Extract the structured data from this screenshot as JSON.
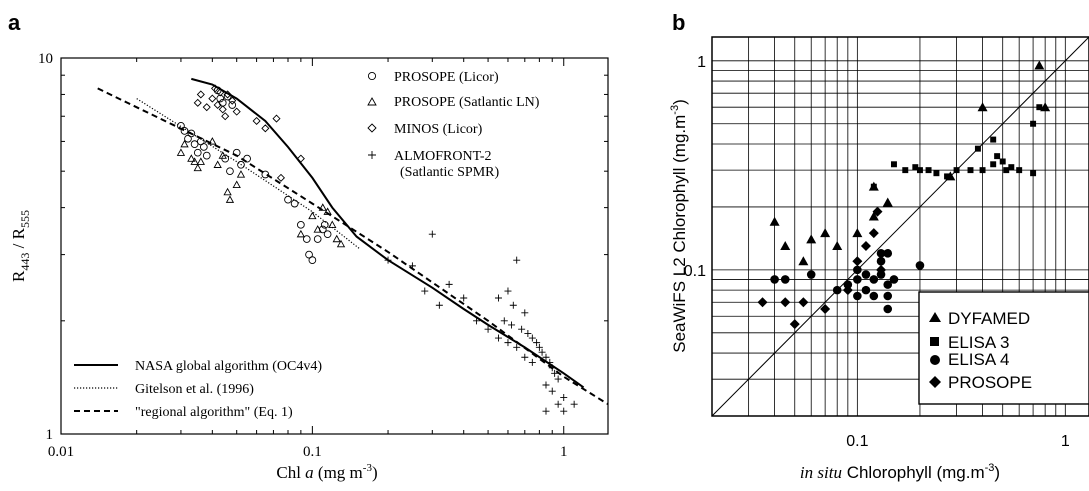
{
  "chart_data": [
    {
      "panel_label": "a",
      "type": "scatter",
      "xlabel_pre": "Chl ",
      "xlabel_italic": "a",
      "xlabel_unit": " (mg m",
      "xlabel_exp": "-3",
      "xlabel_post": ")",
      "ylabel_main_1": "R",
      "ylabel_sub_1": "443",
      "ylabel_mid": " / R",
      "ylabel_sub_2": "555",
      "x_scale": "log",
      "y_scale": "log",
      "xlim": [
        0.01,
        1.5
      ],
      "ylim": [
        1,
        10
      ],
      "x_ticks": [
        {
          "v": 0.01,
          "label": "0.01"
        },
        {
          "v": 0.1,
          "label": "0.1"
        },
        {
          "v": 1,
          "label": "1"
        }
      ],
      "y_ticks": [
        {
          "v": 1,
          "label": "1"
        },
        {
          "v": 10,
          "label": "10"
        }
      ],
      "series": [
        {
          "name": "PROSOPE (Licor)",
          "marker": "circle",
          "points": [
            [
              0.03,
              6.6
            ],
            [
              0.031,
              6.4
            ],
            [
              0.032,
              6.1
            ],
            [
              0.033,
              6.3
            ],
            [
              0.034,
              5.9
            ],
            [
              0.035,
              5.6
            ],
            [
              0.036,
              6.0
            ],
            [
              0.037,
              5.8
            ],
            [
              0.038,
              5.5
            ],
            [
              0.045,
              5.4
            ],
            [
              0.047,
              5.0
            ],
            [
              0.05,
              5.6
            ],
            [
              0.052,
              5.2
            ],
            [
              0.055,
              5.4
            ],
            [
              0.042,
              8.2
            ],
            [
              0.043,
              7.8
            ],
            [
              0.044,
              7.6
            ],
            [
              0.046,
              7.9
            ],
            [
              0.048,
              7.5
            ],
            [
              0.065,
              4.9
            ],
            [
              0.08,
              4.2
            ],
            [
              0.085,
              4.1
            ],
            [
              0.09,
              3.6
            ],
            [
              0.095,
              3.3
            ],
            [
              0.097,
              3.0
            ],
            [
              0.1,
              2.9
            ],
            [
              0.105,
              3.3
            ],
            [
              0.11,
              3.5
            ],
            [
              0.112,
              3.6
            ],
            [
              0.115,
              3.4
            ]
          ]
        },
        {
          "name": "PROSOPE (Satlantic LN)",
          "marker": "triangle",
          "points": [
            [
              0.03,
              5.6
            ],
            [
              0.031,
              5.9
            ],
            [
              0.033,
              5.4
            ],
            [
              0.034,
              5.3
            ],
            [
              0.035,
              5.1
            ],
            [
              0.036,
              5.3
            ],
            [
              0.04,
              6.0
            ],
            [
              0.042,
              5.2
            ],
            [
              0.044,
              5.5
            ],
            [
              0.046,
              4.4
            ],
            [
              0.047,
              4.2
            ],
            [
              0.05,
              4.6
            ],
            [
              0.052,
              4.9
            ],
            [
              0.09,
              3.4
            ],
            [
              0.1,
              3.8
            ],
            [
              0.105,
              3.5
            ],
            [
              0.11,
              4.0
            ],
            [
              0.115,
              3.9
            ],
            [
              0.12,
              3.6
            ],
            [
              0.125,
              3.3
            ],
            [
              0.13,
              3.2
            ]
          ]
        },
        {
          "name": "MINOS (Licor)",
          "marker": "diamond",
          "points": [
            [
              0.035,
              7.6
            ],
            [
              0.036,
              8.0
            ],
            [
              0.038,
              7.4
            ],
            [
              0.04,
              7.8
            ],
            [
              0.041,
              8.3
            ],
            [
              0.042,
              7.5
            ],
            [
              0.043,
              8.1
            ],
            [
              0.044,
              7.3
            ],
            [
              0.045,
              7.0
            ],
            [
              0.046,
              8.0
            ],
            [
              0.048,
              7.7
            ],
            [
              0.05,
              7.2
            ],
            [
              0.06,
              6.8
            ],
            [
              0.065,
              6.5
            ],
            [
              0.072,
              6.9
            ],
            [
              0.075,
              4.8
            ],
            [
              0.09,
              5.4
            ]
          ]
        },
        {
          "name": "ALMOFRONT-2",
          "name_line2": "(Satlantic SPMR)",
          "marker": "plus",
          "points": [
            [
              0.3,
              3.4
            ],
            [
              0.2,
              2.9
            ],
            [
              0.25,
              2.8
            ],
            [
              0.35,
              2.5
            ],
            [
              0.28,
              2.4
            ],
            [
              0.4,
              2.3
            ],
            [
              0.32,
              2.2
            ],
            [
              0.45,
              2.0
            ],
            [
              0.6,
              2.4
            ],
            [
              0.63,
              2.2
            ],
            [
              0.65,
              2.9
            ],
            [
              0.7,
              2.1
            ],
            [
              0.55,
              2.3
            ],
            [
              0.58,
              2.0
            ],
            [
              0.62,
              1.95
            ],
            [
              0.68,
              1.9
            ],
            [
              0.72,
              1.85
            ],
            [
              0.75,
              1.8
            ],
            [
              0.78,
              1.75
            ],
            [
              0.8,
              1.7
            ],
            [
              0.82,
              1.65
            ],
            [
              0.85,
              1.6
            ],
            [
              0.88,
              1.55
            ],
            [
              0.9,
              1.5
            ],
            [
              0.92,
              1.45
            ],
            [
              0.95,
              1.4
            ],
            [
              0.6,
              1.75
            ],
            [
              0.65,
              1.7
            ],
            [
              0.7,
              1.6
            ],
            [
              0.75,
              1.55
            ],
            [
              0.85,
              1.35
            ],
            [
              0.9,
              1.3
            ],
            [
              1.0,
              1.25
            ],
            [
              0.95,
              1.2
            ],
            [
              1.1,
              1.2
            ],
            [
              0.85,
              1.15
            ],
            [
              1.0,
              1.15
            ],
            [
              0.5,
              1.9
            ],
            [
              0.55,
              1.8
            ]
          ]
        }
      ],
      "lines": [
        {
          "name": "NASA global algorithm (OC4v4)",
          "style": "solid",
          "points": [
            [
              0.033,
              8.8
            ],
            [
              0.04,
              8.5
            ],
            [
              0.05,
              7.8
            ],
            [
              0.065,
              6.8
            ],
            [
              0.08,
              5.8
            ],
            [
              0.1,
              4.8
            ],
            [
              0.12,
              4.0
            ],
            [
              0.15,
              3.35
            ],
            [
              0.2,
              2.9
            ],
            [
              0.3,
              2.45
            ],
            [
              0.4,
              2.15
            ],
            [
              0.5,
              1.95
            ],
            [
              0.7,
              1.7
            ],
            [
              1.0,
              1.45
            ],
            [
              1.2,
              1.33
            ]
          ]
        },
        {
          "name": "Gitelson et al. (1996)",
          "style": "dotted",
          "points": [
            [
              0.02,
              7.8
            ],
            [
              0.05,
              5.3
            ],
            [
              0.1,
              3.9
            ],
            [
              0.155,
              3.1
            ]
          ]
        },
        {
          "name": "\"regional algorithm\" (Eq. 1)",
          "style": "dashed",
          "points": [
            [
              0.014,
              8.3
            ],
            [
              0.05,
              5.5
            ],
            [
              0.1,
              4.1
            ],
            [
              0.2,
              3.05
            ],
            [
              0.5,
              2.0
            ],
            [
              1.0,
              1.42
            ],
            [
              1.5,
              1.2
            ]
          ]
        }
      ],
      "legend_lines": [
        "NASA global algorithm (OC4v4)",
        "Gitelson et al. (1996)",
        "\"regional algorithm\" (Eq. 1)"
      ]
    },
    {
      "panel_label": "b",
      "type": "scatter",
      "xlabel_italic": "in situ",
      "xlabel_rest": " Chlorophyll (mg.m",
      "xlabel_exp": "-3",
      "xlabel_post": ")",
      "ylabel": "SeaWiFS L2 Chlorophyll (mg.m",
      "ylabel_exp": "-3",
      "ylabel_post": ")",
      "x_scale": "log",
      "y_scale": "log",
      "xlim": [
        0.02,
        1.3
      ],
      "ylim": [
        0.02,
        1.3
      ],
      "grid": true,
      "one_to_one_line": true,
      "x_ticks": [
        {
          "v": 0.1,
          "label": "0.1"
        },
        {
          "v": 1,
          "label": "1"
        }
      ],
      "y_ticks": [
        {
          "v": 0.1,
          "label": "0.1"
        },
        {
          "v": 1,
          "label": "1"
        }
      ],
      "series": [
        {
          "name": "DYFAMED",
          "marker": "triangle",
          "points": [
            [
              0.04,
              0.17
            ],
            [
              0.045,
              0.13
            ],
            [
              0.055,
              0.11
            ],
            [
              0.06,
              0.14
            ],
            [
              0.07,
              0.15
            ],
            [
              0.08,
              0.13
            ],
            [
              0.1,
              0.15
            ],
            [
              0.12,
              0.18
            ],
            [
              0.14,
              0.21
            ],
            [
              0.4,
              0.6
            ],
            [
              0.75,
              0.95
            ],
            [
              0.8,
              0.6
            ],
            [
              0.12,
              0.25
            ],
            [
              0.28,
              0.28
            ]
          ]
        },
        {
          "name": "ELISA 3",
          "marker": "square",
          "points": [
            [
              0.12,
              0.25
            ],
            [
              0.15,
              0.32
            ],
            [
              0.17,
              0.3
            ],
            [
              0.19,
              0.31
            ],
            [
              0.2,
              0.3
            ],
            [
              0.22,
              0.3
            ],
            [
              0.24,
              0.29
            ],
            [
              0.27,
              0.28
            ],
            [
              0.3,
              0.3
            ],
            [
              0.35,
              0.3
            ],
            [
              0.4,
              0.3
            ],
            [
              0.38,
              0.38
            ],
            [
              0.45,
              0.32
            ],
            [
              0.47,
              0.35
            ],
            [
              0.5,
              0.33
            ],
            [
              0.52,
              0.3
            ],
            [
              0.55,
              0.31
            ],
            [
              0.6,
              0.3
            ],
            [
              0.7,
              0.29
            ],
            [
              0.7,
              0.5
            ],
            [
              0.75,
              0.6
            ],
            [
              0.45,
              0.42
            ]
          ]
        },
        {
          "name": "ELISA 4",
          "marker": "circle",
          "points": [
            [
              0.04,
              0.09
            ],
            [
              0.045,
              0.09
            ],
            [
              0.06,
              0.095
            ],
            [
              0.08,
              0.08
            ],
            [
              0.09,
              0.085
            ],
            [
              0.1,
              0.09
            ],
            [
              0.1,
              0.1
            ],
            [
              0.1,
              0.075
            ],
            [
              0.11,
              0.095
            ],
            [
              0.12,
              0.09
            ],
            [
              0.12,
              0.075
            ],
            [
              0.13,
              0.095
            ],
            [
              0.13,
              0.11
            ],
            [
              0.14,
              0.085
            ],
            [
              0.14,
              0.075
            ],
            [
              0.15,
              0.09
            ],
            [
              0.14,
              0.12
            ],
            [
              0.13,
              0.12
            ],
            [
              0.2,
              0.105
            ],
            [
              0.14,
              0.065
            ],
            [
              0.11,
              0.08
            ]
          ]
        },
        {
          "name": "PROSOPE",
          "marker": "diamond",
          "points": [
            [
              0.035,
              0.07
            ],
            [
              0.045,
              0.07
            ],
            [
              0.05,
              0.055
            ],
            [
              0.055,
              0.07
            ],
            [
              0.07,
              0.065
            ],
            [
              0.09,
              0.08
            ],
            [
              0.12,
              0.15
            ],
            [
              0.125,
              0.19
            ],
            [
              0.11,
              0.13
            ],
            [
              0.13,
              0.1
            ],
            [
              0.1,
              0.11
            ]
          ]
        }
      ]
    }
  ]
}
